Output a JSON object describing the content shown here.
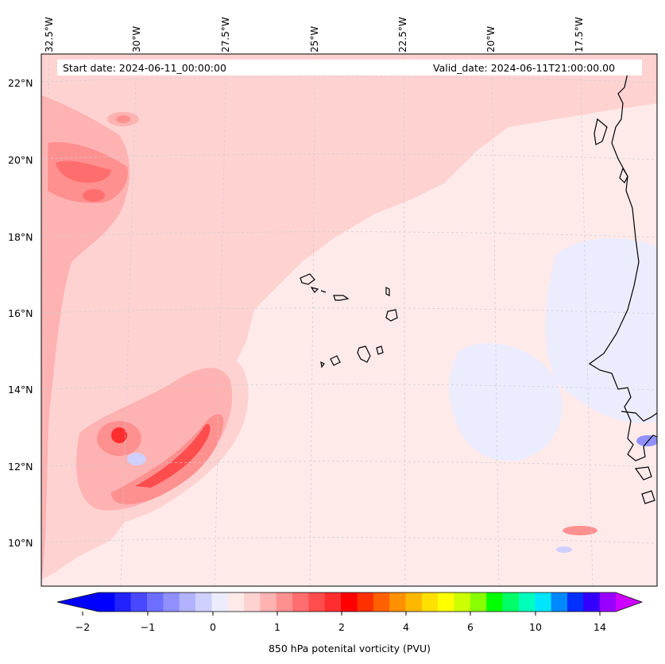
{
  "header": {
    "start_date": "Start date: 2024-06-11_00:00:00",
    "valid_date": "Valid_date: 2024-06-11T21:00:00.00"
  },
  "map": {
    "lon_labels": [
      "32.5°W",
      "30°W",
      "27.5°W",
      "25°W",
      "22.5°W",
      "20°W",
      "17.5°W"
    ],
    "lat_labels": [
      "22°N",
      "20°N",
      "18°N",
      "16°N",
      "14°N",
      "12°N",
      "10°N"
    ],
    "features": [
      "Cabo Verde islands",
      "West African coastline",
      "positive vorticity band"
    ]
  },
  "colorbar": {
    "title": "850 hPa potenital vorticity (PVU)",
    "ticks": [
      "−2",
      "−1",
      "0",
      "1",
      "2",
      "4",
      "6",
      "10",
      "14"
    ],
    "colors": [
      "#0000ff",
      "#2222ff",
      "#4848ff",
      "#6e6eff",
      "#9090ff",
      "#b2b2ff",
      "#d0d0ff",
      "#ececff",
      "#ffeaea",
      "#ffd2d2",
      "#ffb2b2",
      "#ff9090",
      "#ff6e6e",
      "#ff4c4c",
      "#ff2e2e",
      "#ff0000",
      "#ff3000",
      "#ff6000",
      "#ff9000",
      "#ffb800",
      "#ffe000",
      "#ffff00",
      "#ccff00",
      "#88ff00",
      "#00ff00",
      "#00ff66",
      "#00ffbb",
      "#00e5ff",
      "#0088ff",
      "#0030ff",
      "#3300ff",
      "#9900ff"
    ],
    "under_color": "#0000ff",
    "over_color": "#cc00ff"
  }
}
